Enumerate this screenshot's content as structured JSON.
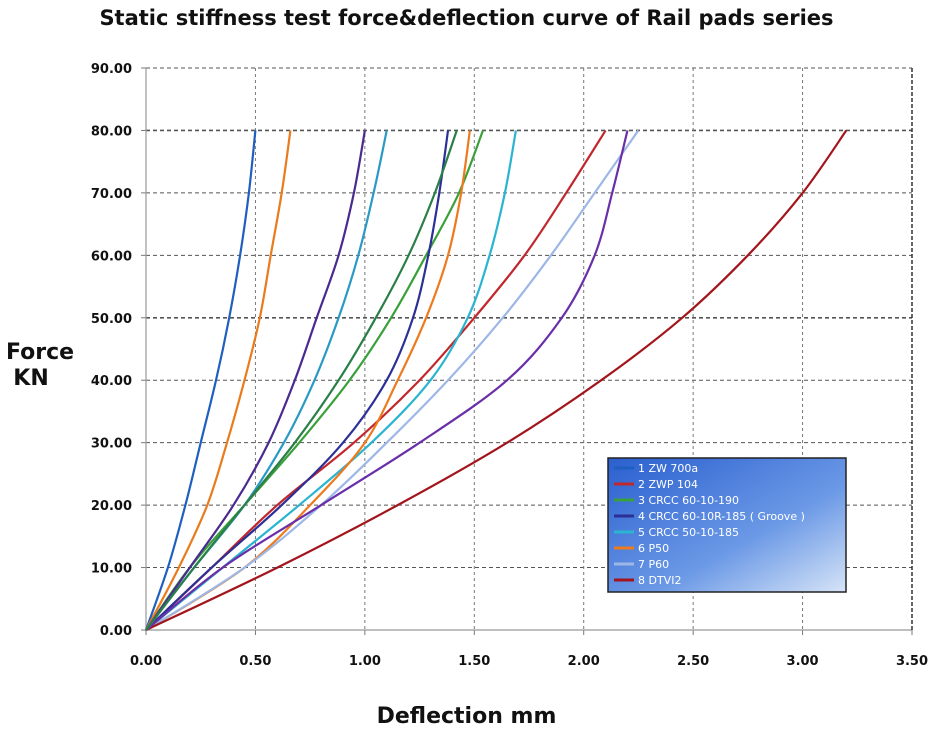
{
  "chart_data": {
    "type": "line",
    "title": "Static stiffness test force&deflection curve of Rail pads series",
    "xlabel": "Deflection  mm",
    "ylabel_line1": "Force",
    "ylabel_line2": "KN",
    "xlim": [
      0,
      3.5
    ],
    "ylim": [
      0,
      90
    ],
    "xticks": [
      "0.00",
      "0.50",
      "1.00",
      "1.50",
      "2.00",
      "2.50",
      "3.00",
      "3.50"
    ],
    "yticks": [
      "0.00",
      "10.00",
      "20.00",
      "30.00",
      "40.00",
      "50.00",
      "60.00",
      "70.00",
      "80.00",
      "90.00"
    ],
    "grid": "dashed horizontal and vertical",
    "legend_position": "bottom-right",
    "series": [
      {
        "name": "1  ZW 700a",
        "color": "#1f5fbf",
        "x": [
          0,
          0.1,
          0.18,
          0.25,
          0.32,
          0.38,
          0.43,
          0.47,
          0.5
        ],
        "y": [
          0,
          10,
          20,
          30,
          40,
          50,
          60,
          70,
          80
        ]
      },
      {
        "name": "2 ZWP 104",
        "color": "#c0282e",
        "x": [
          0,
          0.3,
          0.6,
          0.95,
          1.25,
          1.5,
          1.73,
          1.92,
          2.1
        ],
        "y": [
          0,
          10,
          20,
          30,
          40,
          50,
          60,
          70,
          80
        ]
      },
      {
        "name": "3 CRCC 60-10-190",
        "color": "#3aa03a",
        "x": [
          0,
          0.2,
          0.45,
          0.7,
          0.93,
          1.12,
          1.28,
          1.43,
          1.54
        ],
        "y": [
          0,
          10,
          20,
          30,
          40,
          50,
          60,
          70,
          80
        ]
      },
      {
        "name": "4 CRCC 60-10R-185 ( Groove )",
        "color": "#2c2f96",
        "x": [
          0,
          0.3,
          0.62,
          0.9,
          1.1,
          1.22,
          1.29,
          1.34,
          1.38
        ],
        "y": [
          0,
          10,
          20,
          30,
          40,
          50,
          60,
          70,
          80
        ]
      },
      {
        "name": "5 CRCC 50-10-185",
        "color": "#2ab4d0",
        "x": [
          0,
          0.35,
          0.7,
          1.03,
          1.3,
          1.47,
          1.57,
          1.64,
          1.69
        ],
        "y": [
          0,
          10,
          20,
          30,
          40,
          50,
          60,
          70,
          80
        ]
      },
      {
        "name": "6 P50",
        "color": "#ee7a1f",
        "x": [
          0,
          0.45,
          0.75,
          1.0,
          1.15,
          1.28,
          1.38,
          1.44,
          1.48
        ],
        "y": [
          0,
          10,
          20,
          30,
          40,
          50,
          60,
          70,
          80
        ]
      },
      {
        "name": "7 P60",
        "color": "#9db7e6",
        "x": [
          0,
          0.45,
          0.8,
          1.1,
          1.38,
          1.63,
          1.85,
          2.05,
          2.25
        ],
        "y": [
          0,
          10,
          20,
          30,
          40,
          50,
          60,
          70,
          80
        ]
      },
      {
        "name": "8 DTVI2",
        "color": "#a3151c",
        "x": [
          0,
          0.6,
          1.15,
          1.65,
          2.08,
          2.45,
          2.75,
          3.0,
          3.2
        ],
        "y": [
          0,
          10,
          20,
          30,
          40,
          50,
          60,
          70,
          80
        ]
      },
      {
        "name": "",
        "color": "#6a2fa8",
        "x": [
          0,
          0.35,
          0.8,
          1.25,
          1.65,
          1.9,
          2.05,
          2.13,
          2.2
        ],
        "y": [
          0,
          10,
          20,
          30,
          40,
          50,
          60,
          70,
          80
        ]
      },
      {
        "name": "",
        "color": "#e87b1c",
        "x": [
          0,
          0.15,
          0.28,
          0.37,
          0.45,
          0.52,
          0.57,
          0.62,
          0.66
        ],
        "y": [
          0,
          10,
          20,
          30,
          40,
          50,
          60,
          70,
          80
        ]
      },
      {
        "name": "",
        "color": "#4a2a90",
        "x": [
          0,
          0.2,
          0.4,
          0.56,
          0.68,
          0.78,
          0.88,
          0.95,
          1.0
        ],
        "y": [
          0,
          10,
          20,
          30,
          40,
          50,
          60,
          70,
          80
        ]
      },
      {
        "name": "",
        "color": "#2a9ac4",
        "x": [
          0,
          0.22,
          0.45,
          0.63,
          0.77,
          0.88,
          0.97,
          1.04,
          1.1
        ],
        "y": [
          0,
          10,
          20,
          30,
          40,
          50,
          60,
          70,
          80
        ]
      },
      {
        "name": "",
        "color": "#2a7f48",
        "x": [
          0,
          0.22,
          0.45,
          0.68,
          0.88,
          1.05,
          1.2,
          1.32,
          1.42
        ],
        "y": [
          0,
          10,
          20,
          30,
          40,
          50,
          60,
          70,
          80
        ]
      }
    ]
  }
}
